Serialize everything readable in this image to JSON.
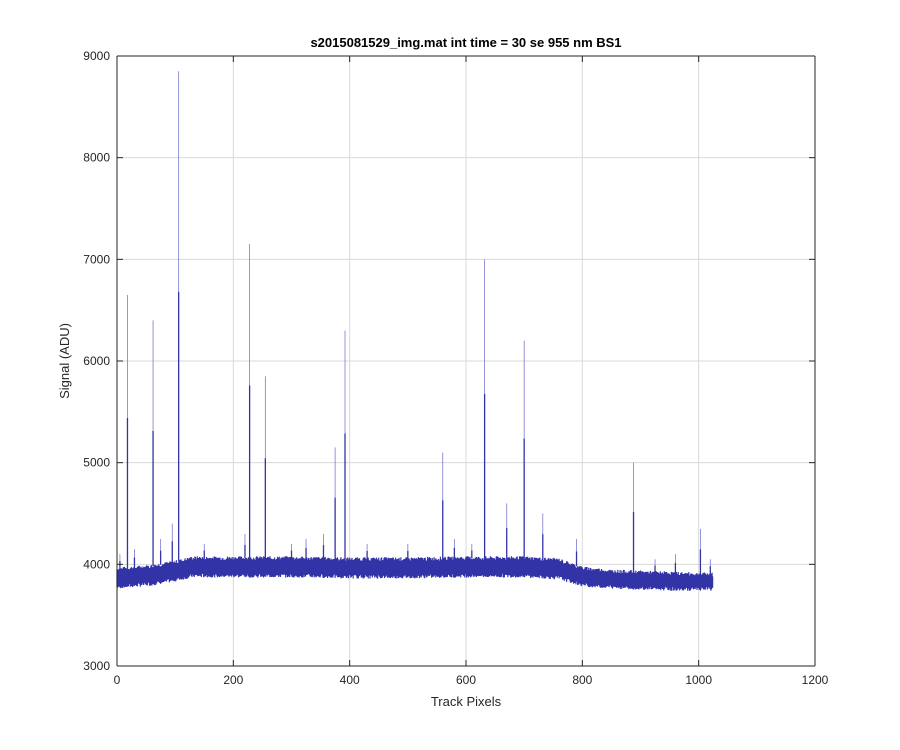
{
  "chart_data": {
    "type": "line",
    "title": "s2015081529_img.mat int time = 30 se  955 nm BS1",
    "xlabel": "Track Pixels",
    "ylabel": "Signal (ADU)",
    "xlim": [
      0,
      1200
    ],
    "ylim": [
      3000,
      9000
    ],
    "x_ticks": [
      "0",
      "200",
      "400",
      "600",
      "800",
      "1000",
      "1200"
    ],
    "y_ticks": [
      "3000",
      "4000",
      "5000",
      "6000",
      "7000",
      "8000",
      "9000"
    ],
    "grid": true,
    "colors": {
      "trace": "#3333a8",
      "spike_tip": "#7a7ad0",
      "grid": "#d9d9d9",
      "axis": "#262626"
    },
    "series": [
      {
        "band": {
          "x": [
            0,
            20,
            60,
            100,
            130,
            200,
            300,
            400,
            500,
            600,
            700,
            760,
            800,
            850,
            900,
            950,
            1000,
            1024
          ],
          "top": [
            3950,
            3960,
            3980,
            4020,
            4060,
            4060,
            4060,
            4050,
            4050,
            4060,
            4060,
            4040,
            3960,
            3930,
            3920,
            3910,
            3900,
            3900
          ],
          "bottom": [
            3780,
            3790,
            3810,
            3850,
            3890,
            3890,
            3890,
            3880,
            3880,
            3890,
            3890,
            3870,
            3800,
            3780,
            3770,
            3760,
            3760,
            3760
          ]
        },
        "spikes": [
          {
            "x": 5,
            "y": 4100
          },
          {
            "x": 18,
            "y": 6650
          },
          {
            "x": 30,
            "y": 4150
          },
          {
            "x": 62,
            "y": 6400
          },
          {
            "x": 75,
            "y": 4250
          },
          {
            "x": 95,
            "y": 4400
          },
          {
            "x": 106,
            "y": 8850
          },
          {
            "x": 150,
            "y": 4200
          },
          {
            "x": 220,
            "y": 4300
          },
          {
            "x": 228,
            "y": 7150
          },
          {
            "x": 255,
            "y": 5850
          },
          {
            "x": 300,
            "y": 4200
          },
          {
            "x": 325,
            "y": 4250
          },
          {
            "x": 355,
            "y": 4300
          },
          {
            "x": 375,
            "y": 5150
          },
          {
            "x": 392,
            "y": 6300
          },
          {
            "x": 430,
            "y": 4200
          },
          {
            "x": 500,
            "y": 4200
          },
          {
            "x": 560,
            "y": 5100
          },
          {
            "x": 580,
            "y": 4250
          },
          {
            "x": 610,
            "y": 4200
          },
          {
            "x": 632,
            "y": 7000
          },
          {
            "x": 670,
            "y": 4600
          },
          {
            "x": 700,
            "y": 6200
          },
          {
            "x": 732,
            "y": 4500
          },
          {
            "x": 790,
            "y": 4250
          },
          {
            "x": 888,
            "y": 5000
          },
          {
            "x": 925,
            "y": 4050
          },
          {
            "x": 960,
            "y": 4100
          },
          {
            "x": 1003,
            "y": 4350
          },
          {
            "x": 1020,
            "y": 4050
          }
        ]
      }
    ]
  }
}
